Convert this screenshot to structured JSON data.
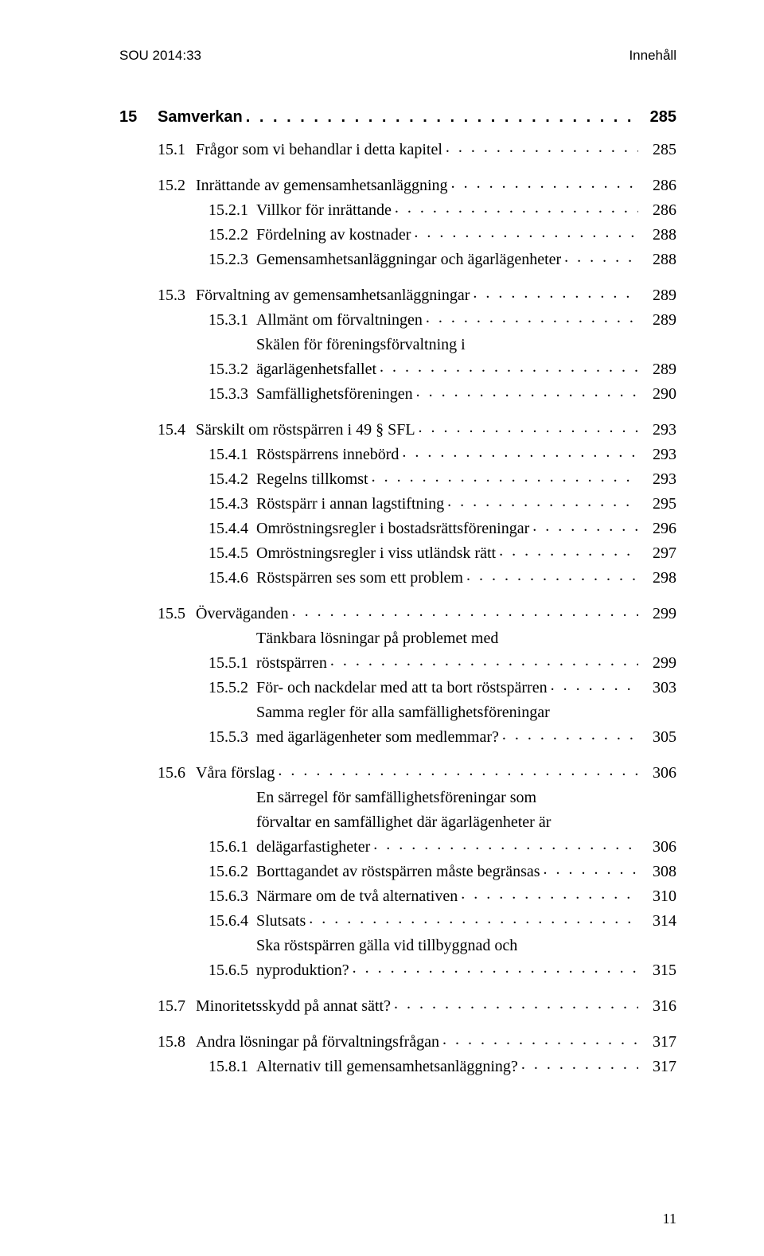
{
  "runhead": {
    "left": "SOU 2014:33",
    "right": "Innehåll"
  },
  "chapter": {
    "num": "15",
    "title": "Samverkan",
    "page": "285"
  },
  "foot_page": "11",
  "dots": ". . . . . . . . . . . . . . . . . . . . . . . . . . . . . . . . . . . . . . . . . . . . . . . . . . . . . . . . . . . . . . . . . . . . . . . . . . . . . . . . . . . . .",
  "groups": [
    [
      {
        "lvl": 1,
        "num": "15.1",
        "lines": [
          "Frågor som vi behandlar i detta kapitel"
        ],
        "page": "285"
      }
    ],
    [
      {
        "lvl": 1,
        "num": "15.2",
        "lines": [
          "Inrättande av gemensamhetsanläggning"
        ],
        "page": "286"
      },
      {
        "lvl": 2,
        "num": "15.2.1",
        "lines": [
          "Villkor för inrättande"
        ],
        "page": "286"
      },
      {
        "lvl": 2,
        "num": "15.2.2",
        "lines": [
          "Fördelning av kostnader"
        ],
        "page": "288"
      },
      {
        "lvl": 2,
        "num": "15.2.3",
        "lines": [
          "Gemensamhetsanläggningar och ägarlägenheter"
        ],
        "page": "288"
      }
    ],
    [
      {
        "lvl": 1,
        "num": "15.3",
        "lines": [
          "Förvaltning av gemensamhetsanläggningar"
        ],
        "page": "289"
      },
      {
        "lvl": 2,
        "num": "15.3.1",
        "lines": [
          "Allmänt om förvaltningen"
        ],
        "page": "289"
      },
      {
        "lvl": 2,
        "num": "15.3.2",
        "lines": [
          "Skälen för föreningsförvaltning i",
          "ägarlägenhetsfallet"
        ],
        "page": "289"
      },
      {
        "lvl": 2,
        "num": "15.3.3",
        "lines": [
          "Samfällighetsföreningen"
        ],
        "page": "290"
      }
    ],
    [
      {
        "lvl": 1,
        "num": "15.4",
        "lines": [
          "Särskilt om röstspärren i 49 § SFL"
        ],
        "page": "293"
      },
      {
        "lvl": 2,
        "num": "15.4.1",
        "lines": [
          "Röstspärrens innebörd"
        ],
        "page": "293"
      },
      {
        "lvl": 2,
        "num": "15.4.2",
        "lines": [
          "Regelns tillkomst"
        ],
        "page": "293"
      },
      {
        "lvl": 2,
        "num": "15.4.3",
        "lines": [
          "Röstspärr i annan lagstiftning"
        ],
        "page": "295"
      },
      {
        "lvl": 2,
        "num": "15.4.4",
        "lines": [
          "Omröstningsregler i bostadsrättsföreningar"
        ],
        "page": "296"
      },
      {
        "lvl": 2,
        "num": "15.4.5",
        "lines": [
          "Omröstningsregler i viss utländsk rätt"
        ],
        "page": "297"
      },
      {
        "lvl": 2,
        "num": "15.4.6",
        "lines": [
          "Röstspärren ses som ett problem"
        ],
        "page": "298"
      }
    ],
    [
      {
        "lvl": 1,
        "num": "15.5",
        "lines": [
          "Överväganden"
        ],
        "page": "299"
      },
      {
        "lvl": 2,
        "num": "15.5.1",
        "lines": [
          "Tänkbara lösningar på problemet med",
          "röstspärren"
        ],
        "page": "299"
      },
      {
        "lvl": 2,
        "num": "15.5.2",
        "lines": [
          "För- och nackdelar med att ta bort röstspärren"
        ],
        "page": "303"
      },
      {
        "lvl": 2,
        "num": "15.5.3",
        "lines": [
          "Samma regler för alla samfällighetsföreningar",
          "med ägarlägenheter som medlemmar?"
        ],
        "page": "305"
      }
    ],
    [
      {
        "lvl": 1,
        "num": "15.6",
        "lines": [
          "Våra förslag"
        ],
        "page": "306"
      },
      {
        "lvl": 2,
        "num": "15.6.1",
        "lines": [
          "En särregel för samfällighetsföreningar som",
          "förvaltar en samfällighet där ägarlägenheter är",
          "delägarfastigheter"
        ],
        "page": "306"
      },
      {
        "lvl": 2,
        "num": "15.6.2",
        "lines": [
          "Borttagandet av röstspärren måste begränsas"
        ],
        "page": "308"
      },
      {
        "lvl": 2,
        "num": "15.6.3",
        "lines": [
          "Närmare om de två alternativen"
        ],
        "page": "310"
      },
      {
        "lvl": 2,
        "num": "15.6.4",
        "lines": [
          "Slutsats"
        ],
        "page": "314"
      },
      {
        "lvl": 2,
        "num": "15.6.5",
        "lines": [
          "Ska röstspärren gälla vid tillbyggnad och",
          "nyproduktion?"
        ],
        "page": "315"
      }
    ],
    [
      {
        "lvl": 1,
        "num": "15.7",
        "lines": [
          "Minoritetsskydd på annat sätt?"
        ],
        "page": "316"
      }
    ],
    [
      {
        "lvl": 1,
        "num": "15.8",
        "lines": [
          "Andra lösningar på förvaltningsfrågan"
        ],
        "page": "317"
      },
      {
        "lvl": 2,
        "num": "15.8.1",
        "lines": [
          "Alternativ till gemensamhetsanläggning?"
        ],
        "page": "317"
      }
    ]
  ]
}
